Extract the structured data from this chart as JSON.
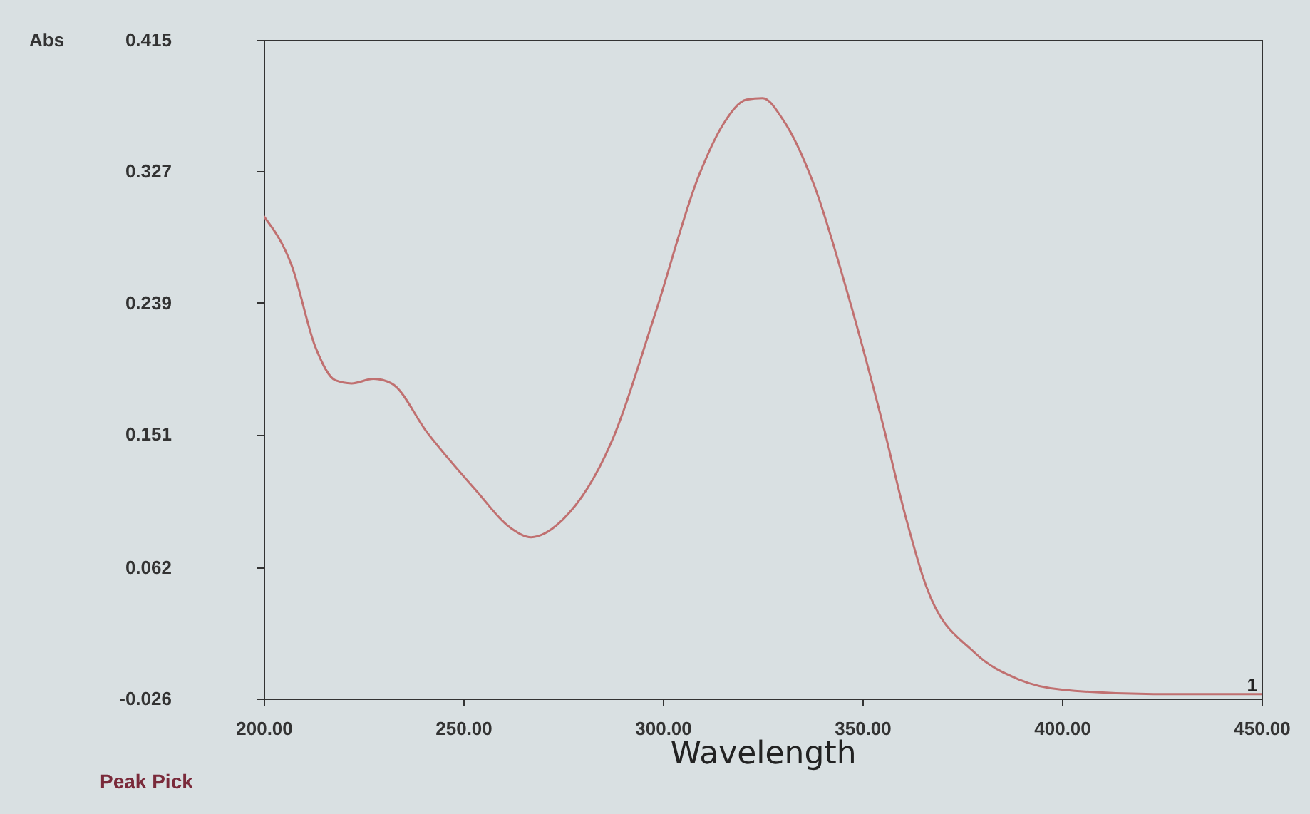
{
  "chart_data": {
    "type": "line",
    "xlabel": "Wavelength",
    "ylabel": "Abs",
    "annotations": [
      "Peak Pick",
      {
        "text": "1",
        "x": 450,
        "y": -0.026
      }
    ],
    "x": [
      200,
      207,
      213,
      218,
      222,
      227.5,
      232,
      241,
      253,
      262,
      267,
      275,
      287,
      298,
      309,
      315,
      321,
      325,
      330,
      338,
      346,
      355,
      361,
      366,
      378,
      389,
      400,
      423,
      445,
      450
    ],
    "series": [
      {
        "color": "#c07070",
        "values": [
          0.297,
          0.264,
          0.209,
          0.187,
          0.185,
          0.188,
          0.185,
          0.152,
          0.114,
          0.088,
          0.082,
          0.094,
          0.145,
          0.231,
          0.324,
          0.358,
          0.375,
          0.376,
          0.362,
          0.317,
          0.248,
          0.159,
          0.094,
          0.049,
          0.005,
          -0.013,
          -0.02,
          -0.023,
          -0.023,
          -0.023
        ]
      }
    ],
    "xlim": [
      200,
      450
    ],
    "ylim": [
      -0.026,
      0.415
    ],
    "xticks": [
      {
        "value": 200,
        "label": "200.00"
      },
      {
        "value": 250,
        "label": "250.00"
      },
      {
        "value": 300,
        "label": "300.00"
      },
      {
        "value": 350,
        "label": "350.00"
      },
      {
        "value": 400,
        "label": "400.00"
      },
      {
        "value": 450,
        "label": "450.00"
      }
    ],
    "yticks": [
      -0.026,
      0.062,
      0.151,
      0.239,
      0.327,
      0.415
    ],
    "grid": false,
    "marker": "none",
    "line_style": "solid"
  }
}
